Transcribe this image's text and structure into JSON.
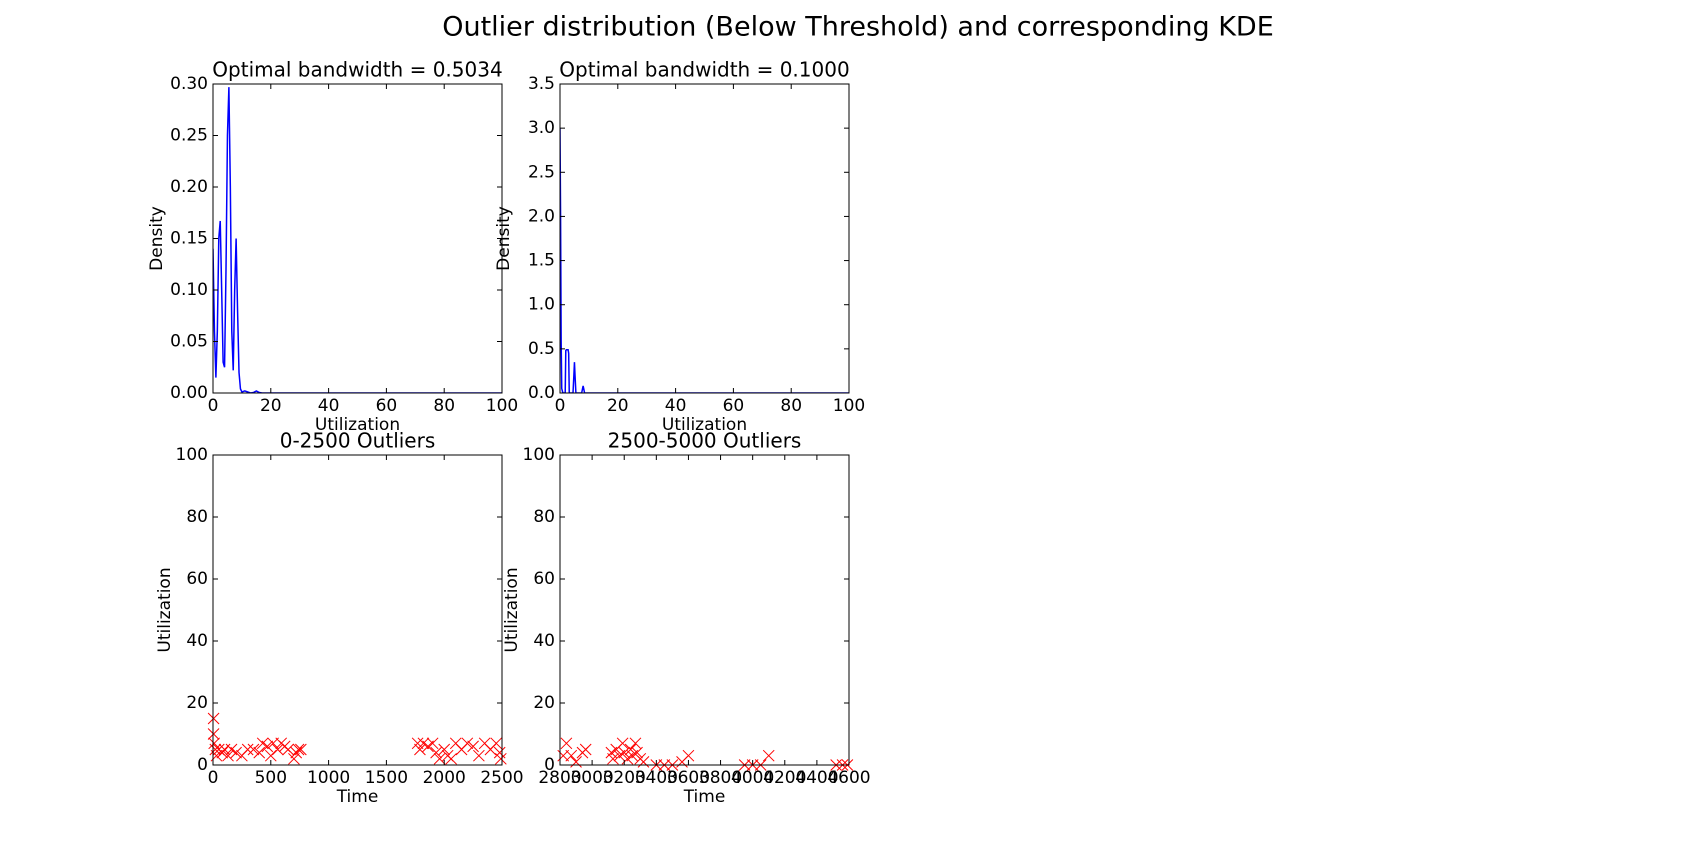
{
  "title": "Outlier distribution (Below Threshold) and corresponding KDE",
  "chart_data": [
    {
      "type": "line",
      "title": "Optimal bandwidth = 0.5034",
      "x_label": "Utilization",
      "y_label": "Density",
      "color": "#0000ff",
      "x": [
        0,
        0.5,
        1,
        1.5,
        2,
        2.5,
        3,
        3.5,
        4,
        4.5,
        5,
        5.5,
        6,
        6.5,
        7,
        7.5,
        8,
        8.5,
        9,
        9.5,
        10,
        11,
        13,
        14,
        15,
        16,
        17,
        20,
        40,
        60,
        80,
        100
      ],
      "values": [
        0.14,
        0.06,
        0.015,
        0.06,
        0.15,
        0.167,
        0.1,
        0.03,
        0.025,
        0.12,
        0.25,
        0.297,
        0.2,
        0.06,
        0.022,
        0.1,
        0.15,
        0.08,
        0.02,
        0.004,
        0.001,
        0.002,
        0,
        0.0005,
        0.002,
        0.0005,
        0,
        0,
        0,
        0,
        0,
        0
      ],
      "xlim": [
        0,
        100
      ],
      "xticks": [
        0,
        20,
        40,
        60,
        80,
        100
      ],
      "ylim": [
        0,
        0.3
      ],
      "yticks": [
        {
          "value": 0,
          "label": "0.00"
        },
        {
          "value": 0.05,
          "label": "0.05"
        },
        {
          "value": 0.1,
          "label": "0.10"
        },
        {
          "value": 0.15,
          "label": "0.15"
        },
        {
          "value": 0.2,
          "label": "0.20"
        },
        {
          "value": 0.25,
          "label": "0.25"
        },
        {
          "value": 0.3,
          "label": "0.30"
        }
      ]
    },
    {
      "type": "line",
      "title": "Optimal bandwidth = 0.1000",
      "x_label": "Utilization",
      "y_label": "Density",
      "color": "#0000ff",
      "x": [
        0,
        0.2,
        0.4,
        0.6,
        1,
        1.8,
        2,
        2.2,
        2.8,
        3,
        3.2,
        4.5,
        4.8,
        5,
        5.2,
        5.5,
        7.5,
        7.8,
        8,
        8.2,
        8.5,
        20,
        40,
        60,
        80,
        100
      ],
      "values": [
        3.0,
        2.0,
        0.6,
        0.05,
        0,
        0,
        0.48,
        0.49,
        0.49,
        0.45,
        0,
        0,
        0.2,
        0.35,
        0.2,
        0,
        0,
        0.05,
        0.08,
        0.05,
        0,
        0,
        0,
        0,
        0,
        0
      ],
      "xlim": [
        0,
        100
      ],
      "xticks": [
        0,
        20,
        40,
        60,
        80,
        100
      ],
      "ylim": [
        0,
        3.5
      ],
      "yticks": [
        {
          "value": 0,
          "label": "0.0"
        },
        {
          "value": 0.5,
          "label": "0.5"
        },
        {
          "value": 1,
          "label": "1.0"
        },
        {
          "value": 1.5,
          "label": "1.5"
        },
        {
          "value": 2,
          "label": "2.0"
        },
        {
          "value": 2.5,
          "label": "2.5"
        },
        {
          "value": 3,
          "label": "3.0"
        },
        {
          "value": 3.5,
          "label": "3.5"
        }
      ]
    },
    {
      "type": "scatter",
      "title": "0-2500 Outliers",
      "x_label": "Time",
      "y_label": "Utilization",
      "color": "#ff0000",
      "x": [
        5,
        5,
        10,
        20,
        30,
        50,
        80,
        100,
        130,
        160,
        200,
        250,
        300,
        350,
        400,
        430,
        470,
        500,
        520,
        560,
        590,
        620,
        650,
        700,
        720,
        740,
        760,
        1770,
        1790,
        1820,
        1860,
        1900,
        1930,
        1960,
        2000,
        2030,
        2060,
        2100,
        2150,
        2200,
        2250,
        2300,
        2350,
        2400,
        2450,
        2480,
        2490
      ],
      "values": [
        15,
        10,
        7,
        5,
        3,
        5,
        4,
        5,
        3,
        5,
        4,
        3,
        5,
        5,
        4,
        7,
        6,
        3,
        7,
        5,
        7,
        6,
        5,
        2,
        4,
        5,
        5,
        7,
        5,
        7,
        6,
        7,
        4,
        2,
        5,
        3,
        2,
        7,
        5,
        7,
        6,
        3,
        7,
        5,
        7,
        4,
        2
      ],
      "xlim": [
        0,
        2500
      ],
      "xticks": [
        0,
        500,
        1000,
        1500,
        2000,
        2500
      ],
      "ylim": [
        0,
        100
      ],
      "yticks": [
        0,
        20,
        40,
        60,
        80,
        100
      ]
    },
    {
      "type": "scatter",
      "title": "2500-5000 Outliers",
      "x_label": "Time",
      "y_label": "Utilization",
      "color": "#ff0000",
      "x": [
        2820,
        2840,
        2870,
        2900,
        2940,
        2960,
        3120,
        3130,
        3150,
        3170,
        3190,
        3200,
        3220,
        3240,
        3250,
        3270,
        3280,
        3300,
        3320,
        3400,
        3450,
        3500,
        3560,
        3600,
        3950,
        4000,
        4050,
        4100,
        4520,
        4560,
        4590
      ],
      "values": [
        3,
        7,
        3,
        1,
        4,
        5,
        4,
        2,
        5,
        3,
        7,
        4,
        2,
        5,
        3,
        7,
        4,
        2,
        1,
        0,
        0,
        0,
        1,
        3,
        0,
        0,
        0,
        3,
        0,
        0,
        0
      ],
      "xlim": [
        2800,
        4600
      ],
      "xticks": [
        2800,
        3000,
        3200,
        3400,
        3600,
        3800,
        4000,
        4200,
        4400,
        4600
      ],
      "ylim": [
        0,
        100
      ],
      "yticks": [
        0,
        20,
        40,
        60,
        80,
        100
      ]
    }
  ]
}
